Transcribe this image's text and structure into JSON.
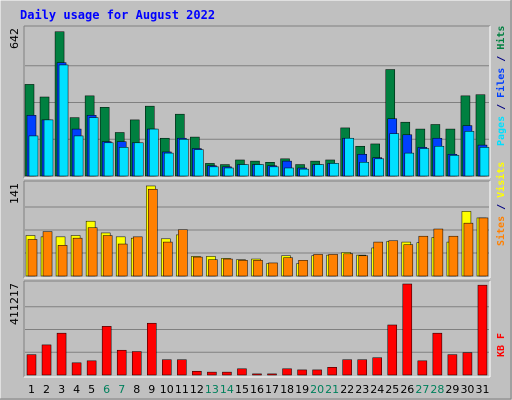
{
  "chart_data": [
    {
      "type": "bar",
      "title": "Daily usage for August 2022",
      "ymax_label": "642",
      "ylim": [
        0,
        642
      ],
      "grid": true,
      "categories": [
        "1",
        "2",
        "3",
        "4",
        "5",
        "6",
        "7",
        "8",
        "9",
        "10",
        "11",
        "12",
        "13",
        "14",
        "15",
        "16",
        "17",
        "18",
        "19",
        "20",
        "21",
        "22",
        "23",
        "24",
        "25",
        "26",
        "27",
        "28",
        "29",
        "30",
        "31"
      ],
      "weekend_days": [
        "6",
        "7",
        "13",
        "14",
        "20",
        "21",
        "27",
        "28"
      ],
      "series": [
        {
          "name": "Hits",
          "color": "#008040",
          "values": [
            400,
            345,
            630,
            255,
            350,
            300,
            190,
            245,
            305,
            165,
            270,
            170,
            55,
            50,
            70,
            65,
            60,
            75,
            50,
            65,
            70,
            210,
            130,
            140,
            465,
            235,
            205,
            225,
            205,
            350,
            355
          ]
        },
        {
          "name": "Files",
          "color": "#0040ff",
          "values": [
            265,
            245,
            495,
            205,
            265,
            150,
            150,
            145,
            205,
            105,
            165,
            120,
            45,
            40,
            50,
            50,
            45,
            65,
            35,
            50,
            55,
            165,
            95,
            80,
            250,
            180,
            125,
            165,
            95,
            220,
            135
          ]
        },
        {
          "name": "Pages",
          "color": "#00e0ff",
          "values": [
            175,
            245,
            485,
            175,
            255,
            145,
            125,
            145,
            205,
            100,
            160,
            115,
            40,
            35,
            50,
            50,
            40,
            35,
            30,
            50,
            55,
            165,
            60,
            75,
            185,
            100,
            120,
            130,
            90,
            195,
            125
          ]
        }
      ]
    },
    {
      "type": "bar",
      "ymax_label": "141",
      "ylim": [
        0,
        141
      ],
      "grid": true,
      "categories": [
        "1",
        "2",
        "3",
        "4",
        "5",
        "6",
        "7",
        "8",
        "9",
        "10",
        "11",
        "12",
        "13",
        "14",
        "15",
        "16",
        "17",
        "18",
        "19",
        "20",
        "21",
        "22",
        "23",
        "24",
        "25",
        "26",
        "27",
        "28",
        "29",
        "30",
        "31"
      ],
      "series": [
        {
          "name": "Visits",
          "color": "#ffff00",
          "values": [
            62,
            60,
            60,
            62,
            84,
            66,
            60,
            58,
            138,
            57,
            63,
            30,
            30,
            27,
            25,
            26,
            19,
            31,
            19,
            31,
            32,
            36,
            32,
            43,
            53,
            52,
            51,
            59,
            52,
            99,
            89
          ]
        },
        {
          "name": "Sites",
          "color": "#ff8000",
          "values": [
            56,
            68,
            47,
            58,
            74,
            62,
            49,
            60,
            133,
            52,
            71,
            29,
            25,
            26,
            24,
            24,
            20,
            28,
            24,
            33,
            33,
            34,
            31,
            52,
            54,
            48,
            61,
            72,
            61,
            81,
            89
          ]
        }
      ]
    },
    {
      "type": "bar",
      "ymax_label": "411217",
      "ylim": [
        0,
        411217
      ],
      "grid": true,
      "categories": [
        "1",
        "2",
        "3",
        "4",
        "5",
        "6",
        "7",
        "8",
        "9",
        "10",
        "11",
        "12",
        "13",
        "14",
        "15",
        "16",
        "17",
        "18",
        "19",
        "20",
        "21",
        "22",
        "23",
        "24",
        "25",
        "26",
        "27",
        "28",
        "29",
        "30",
        "31"
      ],
      "series": [
        {
          "name": "KBytes",
          "color": "#ff0000",
          "values": [
            92000,
            136000,
            189000,
            55000,
            64000,
            220000,
            112000,
            106000,
            234000,
            69000,
            69000,
            17000,
            13000,
            13000,
            28000,
            5000,
            5000,
            28000,
            23000,
            23000,
            35000,
            69000,
            69000,
            78000,
            226000,
            411217,
            64000,
            189000,
            92000,
            101000,
            406000
          ]
        }
      ]
    }
  ],
  "legend": {
    "top": [
      {
        "text": "Pages",
        "color": "#00e0ff"
      },
      {
        "text": " / ",
        "color": "#000080"
      },
      {
        "text": "Files",
        "color": "#0040ff"
      },
      {
        "text": " / ",
        "color": "#000080"
      },
      {
        "text": "Hits",
        "color": "#008040"
      }
    ],
    "middle": [
      {
        "text": "Sites",
        "color": "#ff8000"
      },
      {
        "text": " / ",
        "color": "#000080"
      },
      {
        "text": "Visits",
        "color": "#ffff00"
      }
    ],
    "bottom": [
      {
        "text": "KB F",
        "color": "#ff0000"
      }
    ]
  },
  "colors": {
    "background": "#c0c0c0",
    "panel": "#c0c0c0",
    "border_light": "#ffffff",
    "border_dark": "#808080",
    "title": "#0000ff",
    "label": "#000000",
    "weekend_label": "#00805c",
    "grid": "#808080"
  }
}
